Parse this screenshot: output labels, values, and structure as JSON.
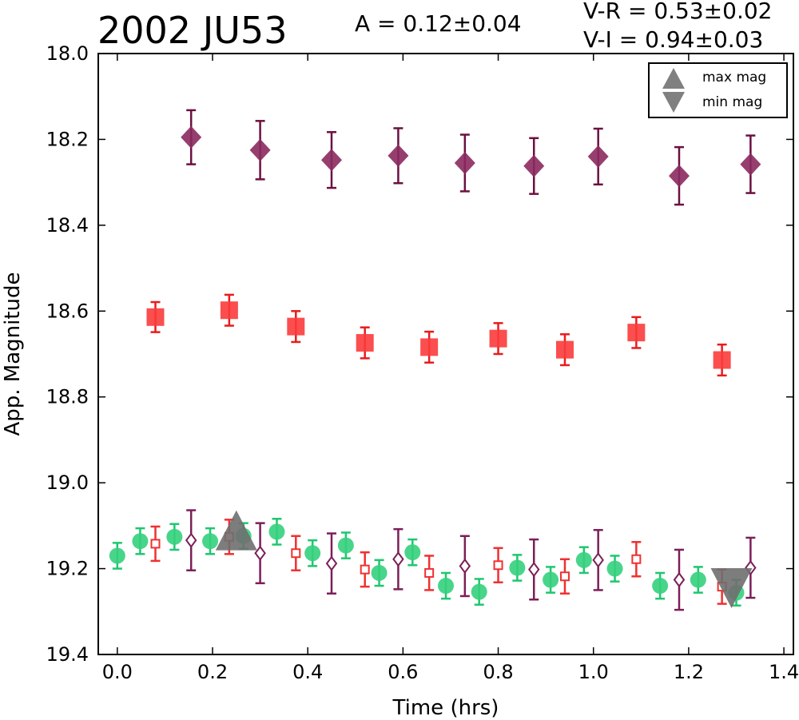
{
  "chart_data": {
    "type": "scatter",
    "title": "2002 JU53",
    "amplitude_text": "A  = 0.12±0.04",
    "color_text_1": "V-R = 0.53±0.02",
    "color_text_2": "V-I  = 0.94±0.03",
    "xlabel": "Time (hrs)",
    "ylabel": "App. Magnitude",
    "xlim": [
      -0.04,
      1.42
    ],
    "ylim": [
      18.0,
      19.4
    ],
    "y_inverted": true,
    "x_ticks": [
      "0.0",
      "0.2",
      "0.4",
      "0.6",
      "0.8",
      "1.0",
      "1.2",
      "1.4"
    ],
    "y_ticks": [
      "18.0",
      "18.2",
      "18.4",
      "18.6",
      "18.8",
      "19.0",
      "19.2",
      "19.4"
    ],
    "grid": false,
    "legend": {
      "position": "top-right",
      "entries": [
        {
          "label": "max mag",
          "marker": "triangle-up",
          "color": "#808080"
        },
        {
          "label": "min mag",
          "marker": "triangle-down",
          "color": "#808080"
        }
      ]
    },
    "series": [
      {
        "marker": "diamond",
        "filled": true,
        "color": "#8b2a5f",
        "errcolor": "#6b1040",
        "x": [
          0.155,
          0.3,
          0.45,
          0.59,
          0.73,
          0.875,
          1.01,
          1.18,
          1.33
        ],
        "y": [
          18.195,
          18.225,
          18.248,
          18.238,
          18.255,
          18.262,
          18.24,
          18.285,
          18.258
        ],
        "err": [
          0.063,
          0.068,
          0.065,
          0.064,
          0.066,
          0.065,
          0.065,
          0.067,
          0.067
        ]
      },
      {
        "marker": "square",
        "filled": true,
        "color": "#fb3b3b",
        "errcolor": "#e81c1c",
        "x": [
          0.08,
          0.235,
          0.375,
          0.52,
          0.655,
          0.8,
          0.94,
          1.09,
          1.27
        ],
        "y": [
          18.614,
          18.598,
          18.636,
          18.674,
          18.684,
          18.664,
          18.69,
          18.65,
          18.714
        ],
        "err": [
          0.035,
          0.036,
          0.036,
          0.036,
          0.036,
          0.036,
          0.036,
          0.036,
          0.036
        ]
      },
      {
        "marker": "circle",
        "filled": true,
        "color": "#34d07d",
        "errcolor": "#1ec76f",
        "x": [
          0.0,
          0.048,
          0.12,
          0.195,
          0.265,
          0.335,
          0.41,
          0.48,
          0.55,
          0.62,
          0.69,
          0.76,
          0.84,
          0.91,
          0.98,
          1.045,
          1.14,
          1.22,
          1.3
        ],
        "y": [
          19.17,
          19.136,
          19.126,
          19.136,
          19.124,
          19.114,
          19.164,
          19.146,
          19.21,
          19.162,
          19.24,
          19.254,
          19.198,
          19.226,
          19.18,
          19.2,
          19.24,
          19.226,
          19.256
        ],
        "err": [
          0.03,
          0.03,
          0.03,
          0.03,
          0.03,
          0.03,
          0.03,
          0.03,
          0.03,
          0.03,
          0.03,
          0.03,
          0.03,
          0.03,
          0.03,
          0.03,
          0.03,
          0.03,
          0.03
        ]
      },
      {
        "marker": "square",
        "filled": false,
        "color": "#f03030",
        "errcolor": "#f03030",
        "x": [
          0.08,
          0.235,
          0.375,
          0.52,
          0.655,
          0.8,
          0.94,
          1.09,
          1.27
        ],
        "y": [
          19.142,
          19.126,
          19.164,
          19.202,
          19.21,
          19.192,
          19.218,
          19.178,
          19.242
        ],
        "err": [
          0.04,
          0.04,
          0.04,
          0.04,
          0.04,
          0.04,
          0.04,
          0.04,
          0.04
        ]
      },
      {
        "marker": "diamond",
        "filled": false,
        "color": "#7b1f58",
        "errcolor": "#7b1f58",
        "x": [
          0.155,
          0.3,
          0.45,
          0.59,
          0.73,
          0.875,
          1.01,
          1.18,
          1.33
        ],
        "y": [
          19.134,
          19.164,
          19.188,
          19.178,
          19.194,
          19.202,
          19.18,
          19.226,
          19.198
        ],
        "err": [
          0.07,
          0.07,
          0.07,
          0.07,
          0.07,
          0.07,
          0.07,
          0.07,
          0.07
        ]
      }
    ],
    "extrema": [
      {
        "type": "max",
        "marker": "triangle-up",
        "color": "#6f6f6f",
        "x": 0.25,
        "y": 19.12
      },
      {
        "type": "min",
        "marker": "triangle-down",
        "color": "#6f6f6f",
        "x": 1.29,
        "y": 19.24
      }
    ]
  }
}
